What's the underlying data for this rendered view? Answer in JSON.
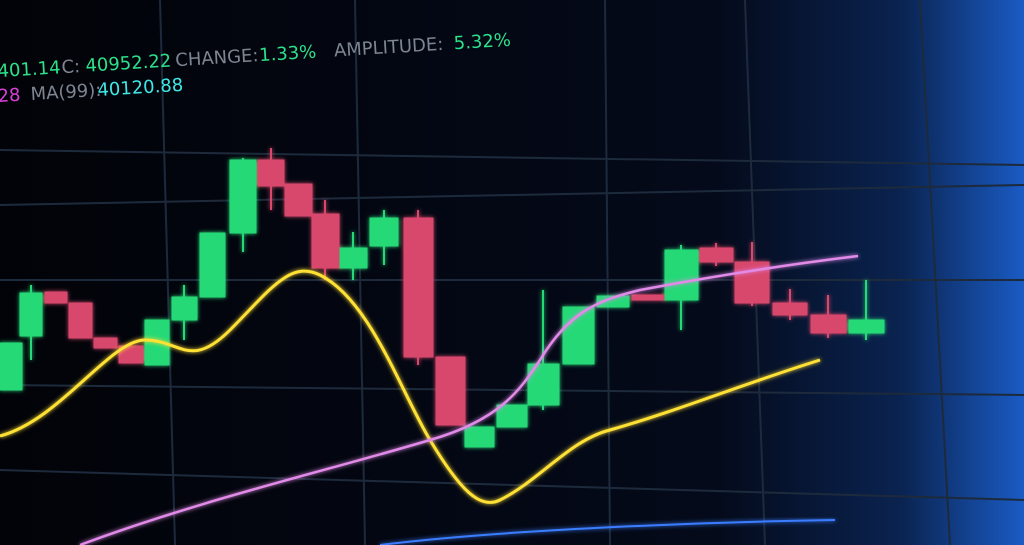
{
  "ticker": {
    "row1": {
      "prev": "401.14",
      "close_label": "C:",
      "close": "40952.22",
      "change_label": "CHANGE:",
      "change": "1.33%",
      "amplitude_label": "AMPLITUDE:",
      "amplitude": "5.32%"
    },
    "row2": {
      "prev": "28",
      "ma_label": "MA(99):",
      "ma": "40120.88"
    }
  }
}
